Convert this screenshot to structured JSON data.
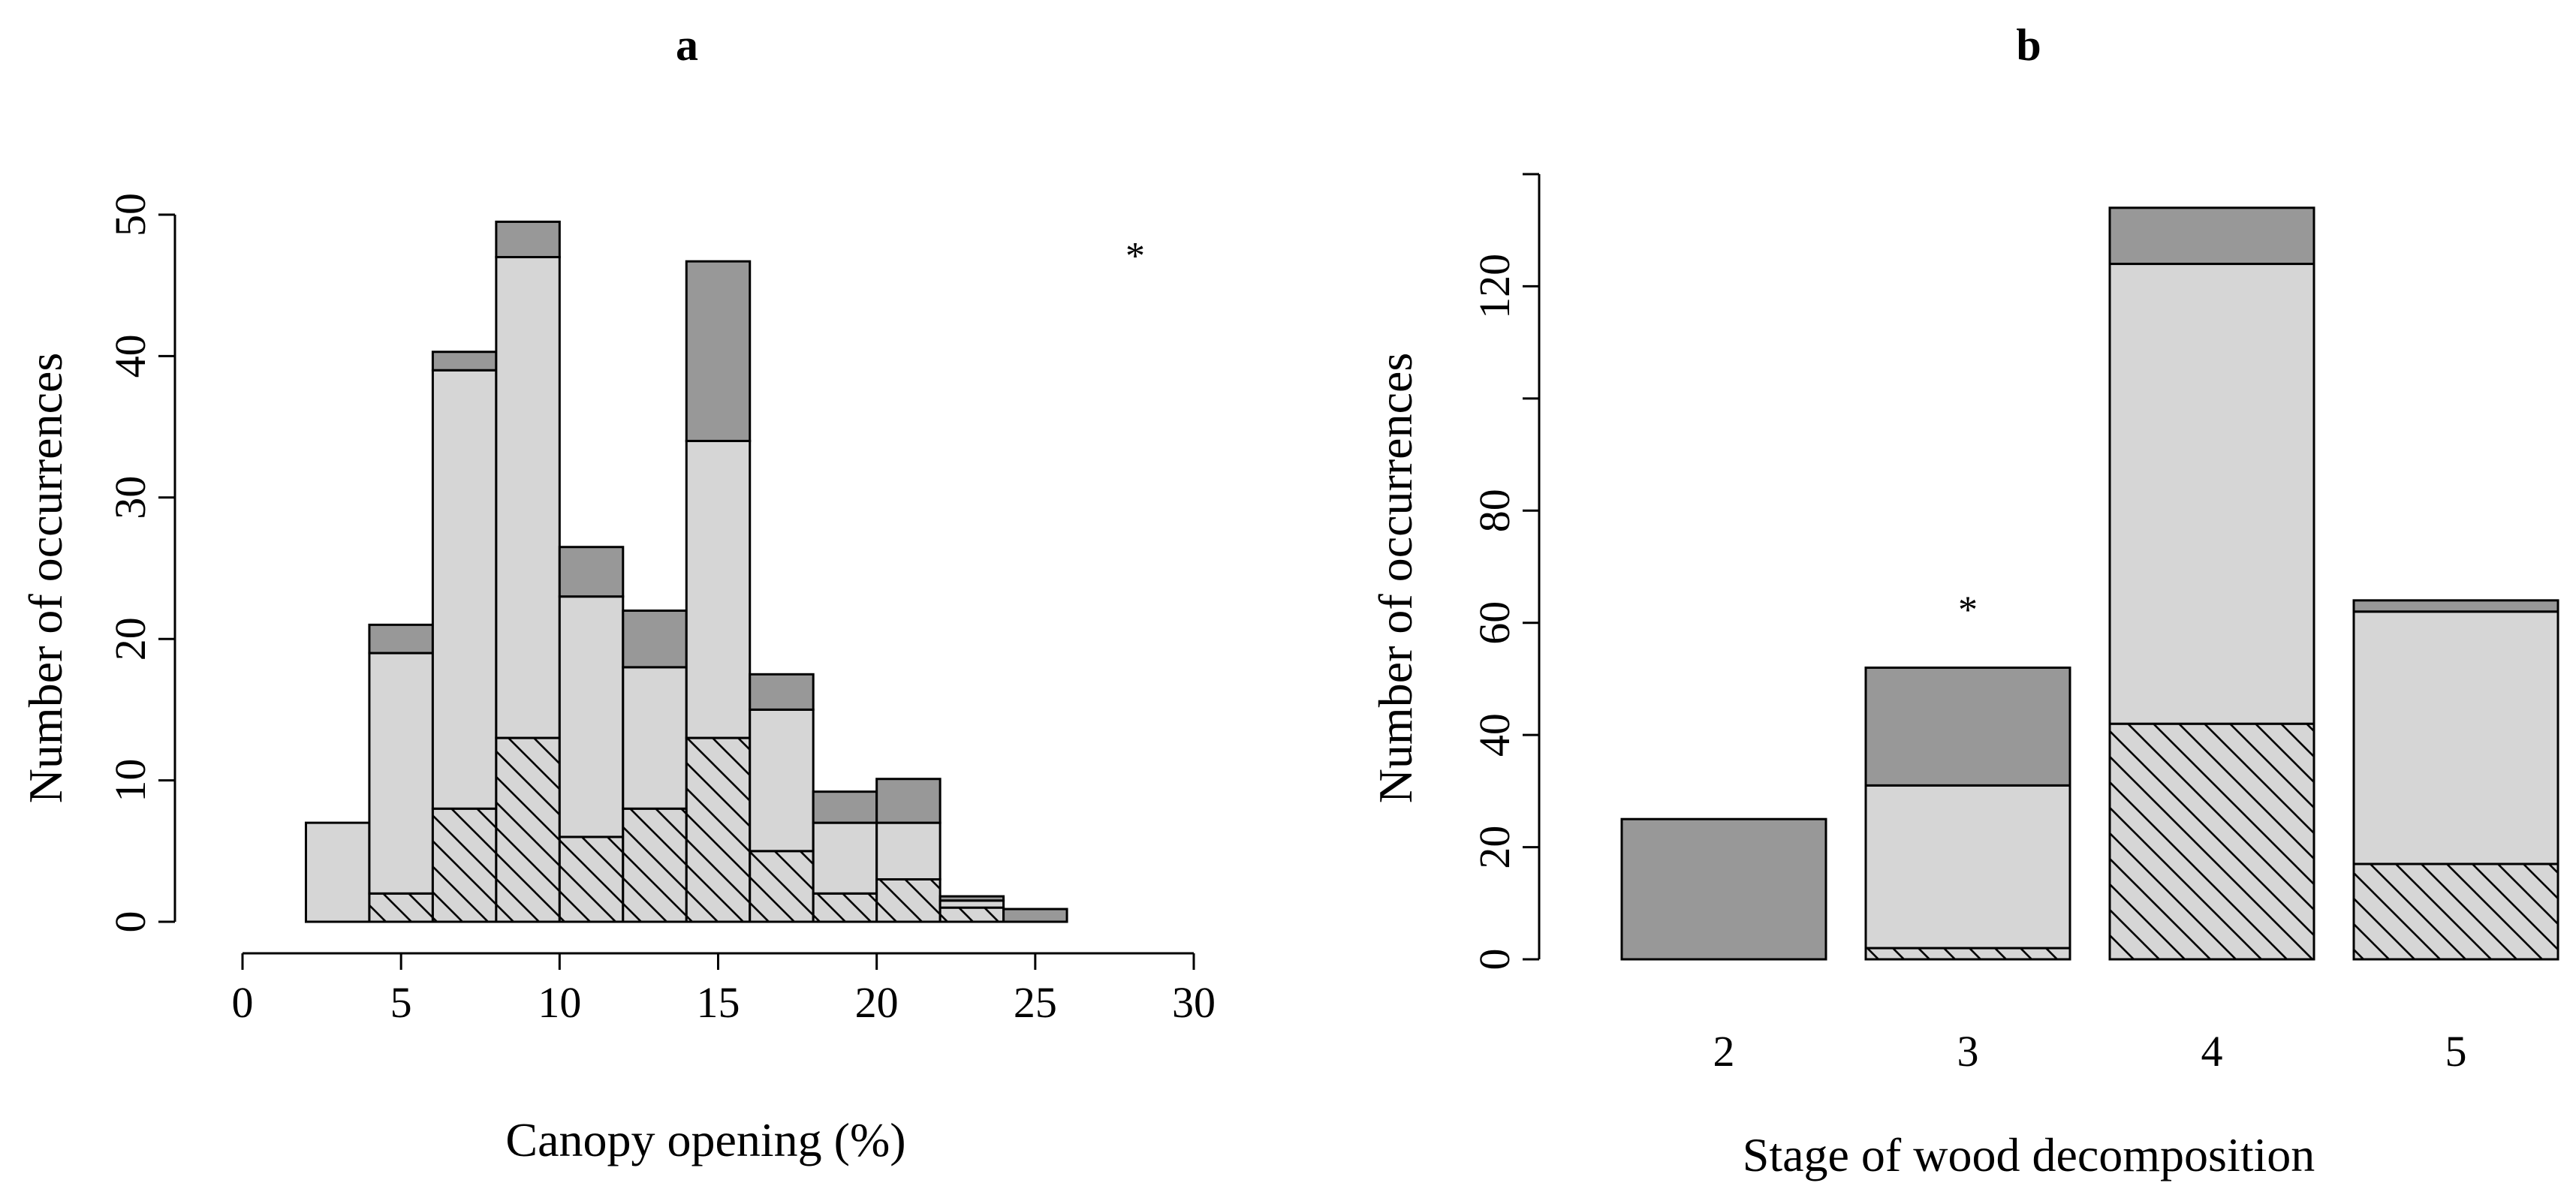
{
  "colors": {
    "dark": "#989898",
    "light": "#d6d6d6",
    "hatch_bg": "#d6d6d6",
    "hatch_line": "#000000"
  },
  "chart_data": [
    {
      "panel": "a",
      "type": "bar",
      "stacked": true,
      "histogram": true,
      "title": "a",
      "xlabel": "Canopy opening (%)",
      "ylabel": "Number of occurrences",
      "xlim": [
        0,
        30
      ],
      "ylim": [
        0,
        50
      ],
      "xticks": [
        0,
        5,
        10,
        15,
        20,
        25,
        30
      ],
      "yticks": [
        0,
        10,
        20,
        30,
        40,
        50
      ],
      "annotation": "*",
      "bin_edges": [
        2,
        4,
        6,
        8,
        10,
        12,
        14,
        16,
        18,
        20,
        22,
        24,
        26
      ],
      "series": [
        {
          "name": "hatched",
          "fill": "hatch",
          "values": [
            0,
            2,
            8,
            13,
            6,
            8,
            13,
            5,
            2,
            3,
            1,
            0
          ]
        },
        {
          "name": "light",
          "fill": "light",
          "values": [
            7,
            17,
            31,
            34,
            17,
            10,
            21,
            10,
            5,
            4,
            0.5,
            0
          ]
        },
        {
          "name": "dark",
          "fill": "dark",
          "values": [
            0,
            2,
            1.3,
            2.5,
            3.5,
            4,
            12.7,
            2.5,
            2.2,
            3.1,
            0.3,
            0.9
          ]
        }
      ]
    },
    {
      "panel": "b",
      "type": "bar",
      "stacked": true,
      "title": "b",
      "xlabel": "Stage of wood decomposition",
      "ylabel": "Number of occurrences",
      "ylim": [
        0,
        140
      ],
      "yticks": [
        0,
        20,
        40,
        60,
        80,
        100,
        120,
        140
      ],
      "ytick_labels": [
        "0",
        "20",
        "40",
        "60",
        "80",
        "",
        "120",
        ""
      ],
      "categories": [
        "2",
        "3",
        "4",
        "5"
      ],
      "annotation": "*",
      "annotation_category": "3",
      "series": [
        {
          "name": "hatched",
          "fill": "hatch",
          "values": [
            0,
            2,
            42,
            17
          ]
        },
        {
          "name": "light",
          "fill": "light",
          "values": [
            0,
            29,
            82,
            45
          ]
        },
        {
          "name": "dark",
          "fill": "dark",
          "values": [
            25,
            21,
            10,
            2
          ]
        }
      ]
    }
  ]
}
